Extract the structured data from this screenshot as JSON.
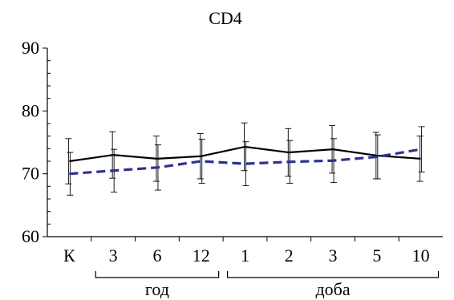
{
  "chart_data": {
    "type": "line",
    "title": "CD4",
    "xlabel": "",
    "ylabel": "",
    "categories": [
      "К",
      "3",
      "6",
      "12",
      "1",
      "2",
      "3",
      "5",
      "10"
    ],
    "category_groups": [
      {
        "label": "год",
        "from": 1,
        "to": 3
      },
      {
        "label": "доба",
        "from": 4,
        "to": 8
      }
    ],
    "ylim": [
      60,
      90
    ],
    "yticks": [
      60,
      70,
      80,
      90
    ],
    "grid": false,
    "legend": "none",
    "series": [
      {
        "style": "solid",
        "color": "#000000",
        "values": [
          72.0,
          73.0,
          72.4,
          72.8,
          74.3,
          73.4,
          73.9,
          72.9,
          72.4
        ],
        "error": [
          3.6,
          3.7,
          3.6,
          3.6,
          3.8,
          3.8,
          3.8,
          3.7,
          3.6
        ]
      },
      {
        "style": "dashed",
        "color": "#2e3192",
        "values": [
          70.0,
          70.5,
          71.0,
          72.0,
          71.6,
          71.9,
          72.1,
          72.7,
          73.9
        ],
        "error": [
          3.4,
          3.4,
          3.6,
          3.5,
          3.5,
          3.4,
          3.5,
          3.5,
          3.6
        ]
      }
    ]
  }
}
